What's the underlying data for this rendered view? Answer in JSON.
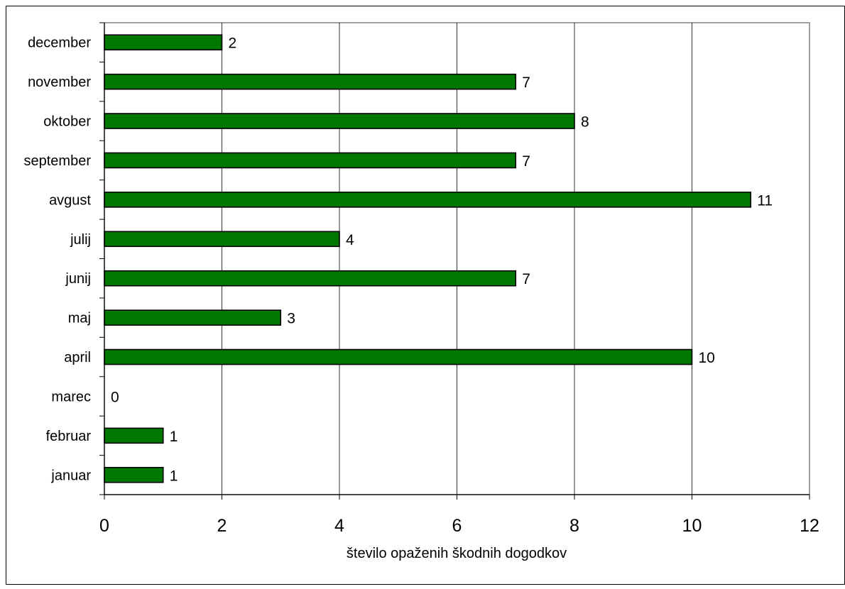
{
  "chart_data": {
    "type": "bar",
    "orientation": "horizontal",
    "title": "",
    "xlabel": "število opaženih škodnih dogodkov",
    "ylabel": "",
    "categories": [
      "januar",
      "februar",
      "marec",
      "april",
      "maj",
      "junij",
      "julij",
      "avgust",
      "september",
      "oktober",
      "november",
      "december"
    ],
    "values": [
      1,
      1,
      0,
      10,
      3,
      7,
      4,
      11,
      7,
      8,
      7,
      2
    ],
    "xlim": [
      0,
      12
    ],
    "xticks": [
      "0",
      "2",
      "4",
      "6",
      "8",
      "10",
      "12"
    ],
    "grid": "vertical",
    "legend": "none",
    "data_labels": true,
    "colors": {
      "bar": "#007800",
      "bar_stroke": "#000000",
      "grid": "#000000",
      "plot_border": "#808080",
      "frame": "#000000"
    }
  }
}
